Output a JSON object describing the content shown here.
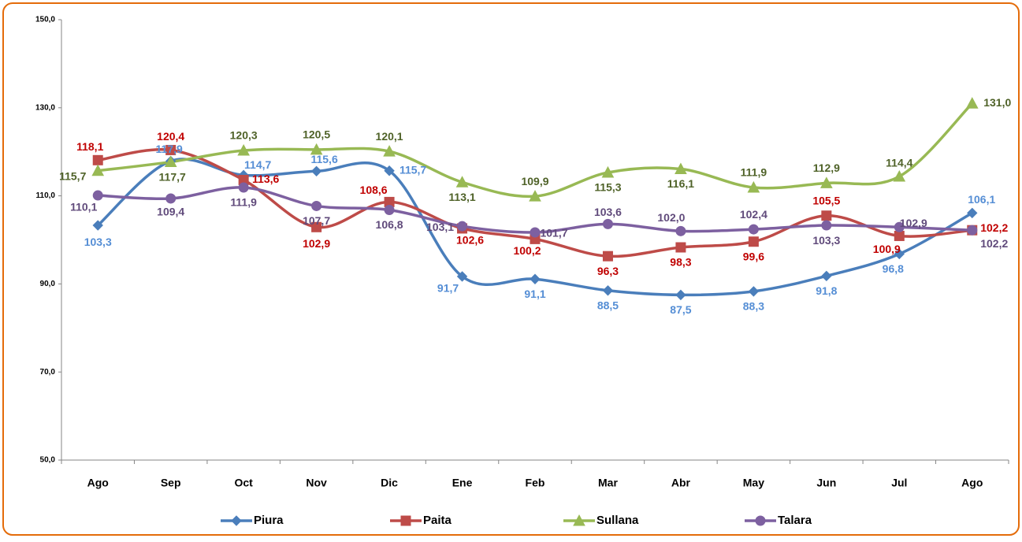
{
  "chart_data": {
    "type": "line",
    "categories": [
      "Ago",
      "Sep",
      "Oct",
      "Nov",
      "Dic",
      "Ene",
      "Feb",
      "Mar",
      "Abr",
      "May",
      "Jun",
      "Jul",
      "Ago"
    ],
    "ylim": [
      50,
      150
    ],
    "yticks": [
      {
        "value": 50,
        "label": "50,0"
      },
      {
        "value": 70,
        "label": "70,0"
      },
      {
        "value": 90,
        "label": "90,0"
      },
      {
        "value": 110,
        "label": "110,0"
      },
      {
        "value": 130,
        "label": "130,0"
      },
      {
        "value": 150,
        "label": "150,0"
      }
    ],
    "series": [
      {
        "name": "Piura",
        "color": "#4a7ebb",
        "label_color": "#558ed5",
        "marker": "diamond",
        "values": [
          103.3,
          117.9,
          114.7,
          115.6,
          115.7,
          91.7,
          91.1,
          88.5,
          87.5,
          88.3,
          91.8,
          96.8,
          106.1
        ],
        "value_labels": [
          "103,3",
          "117,9",
          "114,7",
          "115,6",
          "115,7",
          "91,7",
          "91,1",
          "88,5",
          "87,5",
          "88,3",
          "91,8",
          "96,8",
          "106,1"
        ]
      },
      {
        "name": "Paita",
        "color": "#be4b48",
        "label_color": "#c00000",
        "marker": "square",
        "values": [
          118.1,
          120.4,
          113.6,
          102.9,
          108.6,
          102.6,
          100.2,
          96.3,
          98.3,
          99.6,
          105.5,
          100.9,
          102.2
        ],
        "value_labels": [
          "118,1",
          "120,4",
          "113,6",
          "102,9",
          "108,6",
          "102,6",
          "100,2",
          "96,3",
          "98,3",
          "99,6",
          "105,5",
          "100,9",
          "102,2"
        ]
      },
      {
        "name": "Sullana",
        "color": "#98b954",
        "label_color": "#4f6228",
        "marker": "triangle",
        "values": [
          115.7,
          117.7,
          120.3,
          120.5,
          120.1,
          113.1,
          109.9,
          115.3,
          116.1,
          111.9,
          112.9,
          114.4,
          131.0
        ],
        "value_labels": [
          "115,7",
          "117,7",
          "120,3",
          "120,5",
          "120,1",
          "113,1",
          "109,9",
          "115,3",
          "116,1",
          "111,9",
          "112,9",
          "114,4",
          "131,0"
        ]
      },
      {
        "name": "Talara",
        "color": "#7d60a0",
        "label_color": "#604a7b",
        "marker": "circle",
        "values": [
          110.1,
          109.4,
          111.9,
          107.7,
          106.8,
          103.1,
          101.7,
          103.6,
          102.0,
          102.4,
          103.3,
          102.9,
          102.2
        ],
        "value_labels": [
          "110,1",
          "109,4",
          "111,9",
          "107,7",
          "106,8",
          "103,1",
          "101,7",
          "103,6",
          "102,0",
          "102,4",
          "103,3",
          "102,9",
          "102,2"
        ]
      }
    ]
  }
}
